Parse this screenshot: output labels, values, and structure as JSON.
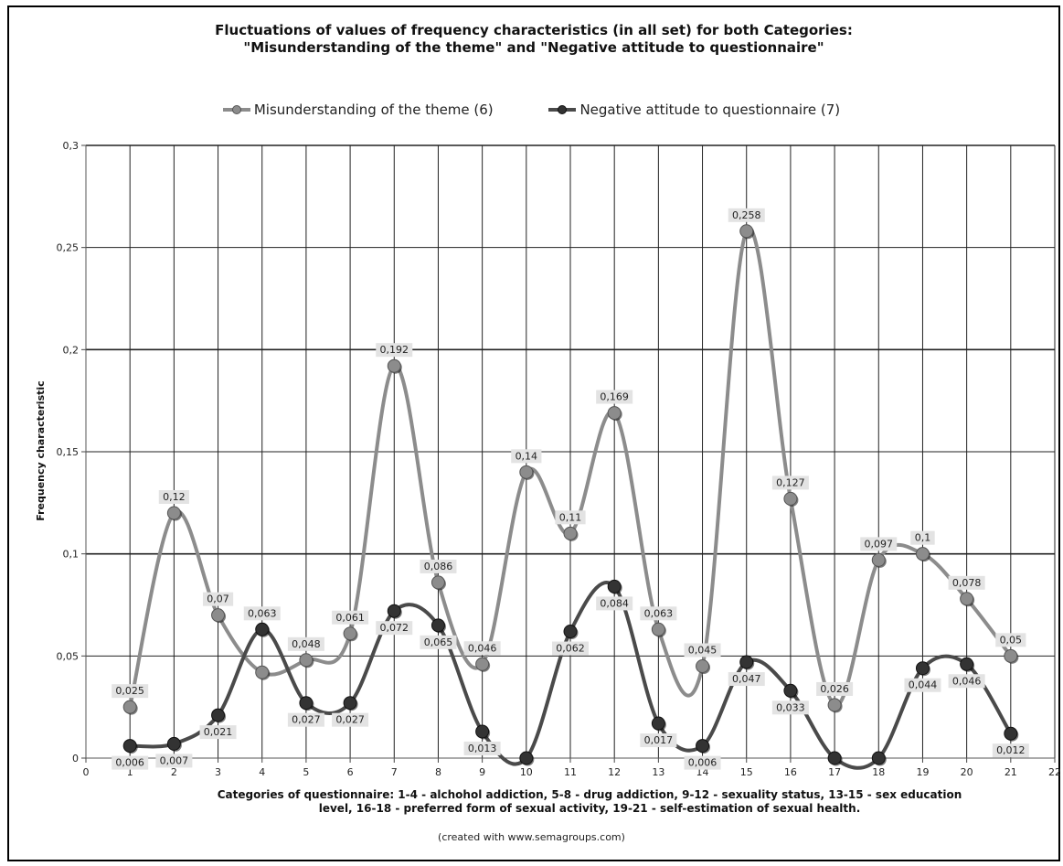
{
  "chart_data": {
    "type": "line",
    "title_line1": "Fluctuations of values of frequency characteristics (in all set) for both Categories:",
    "title_line2": "\"Misunderstanding of the theme\"  and \"Negative attitude to questionnaire\"",
    "ylabel": "Frequency characteristic",
    "xlabel_line1": "Categories of questionnaire: 1-4  - alchohol addiction, 5-8  - drug addiction, 9-12 - sexuality status, 13-15 - sex education",
    "xlabel_line2": "level,  16-18 - preferred form of sexual activity,  19-21 - self-estimation of sexual health.",
    "credit": "(created with www.semagroups.com)",
    "xlim": [
      0,
      22
    ],
    "ylim": [
      0,
      0.3
    ],
    "x_ticks": [
      "0",
      "1",
      "2",
      "3",
      "4",
      "5",
      "6",
      "7",
      "8",
      "9",
      "10",
      "11",
      "12",
      "13",
      "14",
      "15",
      "16",
      "17",
      "18",
      "19",
      "20",
      "21",
      "22"
    ],
    "y_ticks": [
      {
        "value": 0,
        "label": "0"
      },
      {
        "value": 0.05,
        "label": "0,05"
      },
      {
        "value": 0.1,
        "label": "0,1"
      },
      {
        "value": 0.15,
        "label": "0,15"
      },
      {
        "value": 0.2,
        "label": "0,2"
      },
      {
        "value": 0.25,
        "label": "0,25"
      },
      {
        "value": 0.3,
        "label": "0,3"
      }
    ],
    "grid": true,
    "legend_position": "top",
    "series": [
      {
        "name": "Misunderstanding of the theme (6)",
        "color": "#8c8c8c",
        "x": [
          1,
          2,
          3,
          4,
          5,
          6,
          7,
          8,
          9,
          10,
          11,
          12,
          13,
          14,
          15,
          16,
          17,
          18,
          19,
          20,
          21
        ],
        "values": [
          0.025,
          0.12,
          0.07,
          0.042,
          0.048,
          0.061,
          0.192,
          0.086,
          0.046,
          0.14,
          0.11,
          0.169,
          0.063,
          0.045,
          0.258,
          0.127,
          0.026,
          0.097,
          0.1,
          0.078,
          0.05
        ],
        "labels": [
          "0,025",
          "0,12",
          "0,07",
          "",
          "0,048",
          "0,061",
          "0,192",
          "0,086",
          "0,046",
          "0,14",
          "0,11",
          "0,169",
          "0,063",
          "0,045",
          "0,258",
          "0,127",
          "0,026",
          "0,097",
          "0,1",
          "0,078",
          "0,05"
        ]
      },
      {
        "name": "Negative attitude to questionnaire (7)",
        "color": "#4a4a4a",
        "x": [
          1,
          2,
          3,
          4,
          5,
          6,
          7,
          8,
          9,
          10,
          11,
          12,
          13,
          14,
          15,
          16,
          17,
          18,
          19,
          20,
          21
        ],
        "values": [
          0.006,
          0.007,
          0.021,
          0.063,
          0.027,
          0.027,
          0.072,
          0.065,
          0.013,
          0,
          0.062,
          0.084,
          0.017,
          0.006,
          0.047,
          0.033,
          0,
          0,
          0.044,
          0.046,
          0.012
        ],
        "labels": [
          "0,006",
          "0,007",
          "0,021",
          "0,063",
          "0,027",
          "0,027",
          "0,072",
          "0,065",
          "0,013",
          "",
          "0,062",
          "0,084",
          "0,017",
          "0,006",
          "0,047",
          "0,033",
          "",
          "",
          "0,044",
          "0,046",
          "0,012"
        ]
      }
    ]
  }
}
